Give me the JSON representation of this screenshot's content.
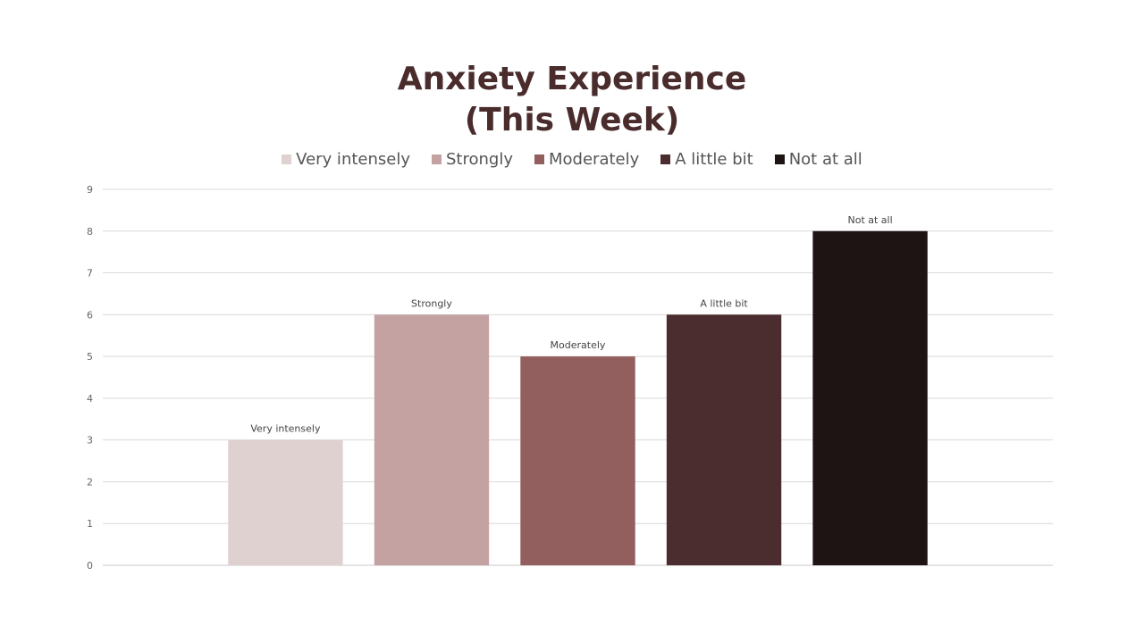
{
  "chart_data": {
    "type": "bar",
    "title_lines": [
      "Anxiety Experience",
      "(This Week)"
    ],
    "categories": [
      "Very intensely",
      "Strongly",
      "Moderately",
      "A little bit",
      "Not at all"
    ],
    "values": [
      3,
      6,
      5,
      6,
      8
    ],
    "data_labels": [
      "Very intensely",
      "Strongly",
      "Moderately",
      "A little bit",
      "Not at all"
    ],
    "colors": [
      "#e0d1d1",
      "#c4a2a2",
      "#935e5e",
      "#4b2d2f",
      "#1e1414"
    ],
    "ylim": [
      0,
      9
    ],
    "yticks": [
      "0",
      "1",
      "2",
      "3",
      "4",
      "5",
      "6",
      "7",
      "8",
      "9"
    ],
    "grid": true,
    "legend": {
      "placement": "top-center",
      "entries": [
        "Very intensely",
        "Strongly",
        "Moderately",
        "A little bit",
        "Not at all"
      ]
    },
    "xlabel": "",
    "ylabel": ""
  }
}
